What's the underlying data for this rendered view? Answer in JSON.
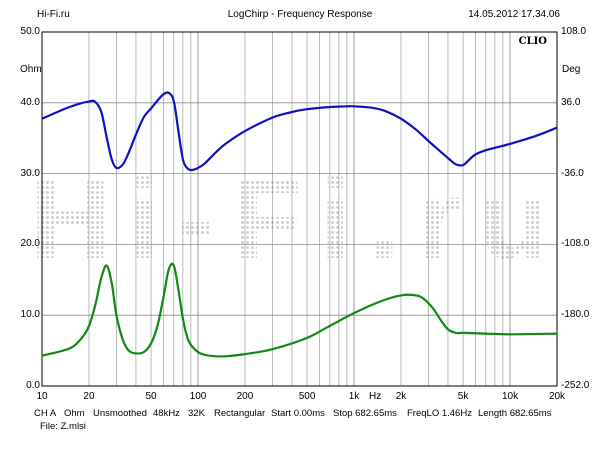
{
  "header": {
    "site": "Hi-Fi.ru",
    "title": "LogChirp - Frequency Response",
    "datetime": "14.05.2012 17.34.06"
  },
  "brand": "CLIO",
  "watermark": "Hi-Fi.ru",
  "footer": {
    "channel": "CH A",
    "unit": "Ohm",
    "smoothing": "Unsmoothed",
    "rate": "48kHz",
    "size": "32K",
    "window": "Rectangular",
    "start": "Start 0.00ms",
    "stop": "Stop 682.65ms",
    "freqlo": "FreqLO 1.46Hz",
    "length": "Length 682.65ms",
    "file": "File: Z.mlsi"
  },
  "chart_data": {
    "type": "line",
    "x_scale": "log",
    "xlim": [
      10,
      20000
    ],
    "xlabel": "Hz",
    "x_ticks": [
      {
        "value": 10,
        "label": "10"
      },
      {
        "value": 20,
        "label": "20"
      },
      {
        "value": 50,
        "label": "50"
      },
      {
        "value": 100,
        "label": "100"
      },
      {
        "value": 200,
        "label": "200"
      },
      {
        "value": 500,
        "label": "500"
      },
      {
        "value": 1000,
        "label": "1k"
      },
      {
        "value": 2000,
        "label": "2k"
      },
      {
        "value": 5000,
        "label": "5k"
      },
      {
        "value": 10000,
        "label": "10k"
      },
      {
        "value": 20000,
        "label": "20k"
      }
    ],
    "y_left": {
      "unit": "Ohm",
      "ylim": [
        0,
        50
      ],
      "ticks": [
        "0.0",
        "10.0",
        "20.0",
        "30.0",
        "40.0",
        "50.0"
      ]
    },
    "y_right": {
      "unit": "Deg",
      "ylim": [
        -252,
        108
      ],
      "ticks": [
        "-252.0",
        "-180.0",
        "-108.0",
        "-36.0",
        "36.0",
        "108.0"
      ]
    },
    "grid": true,
    "series": [
      {
        "color": "#1010c0",
        "axis": "right",
        "x": [
          10,
          15,
          20,
          22,
          24,
          26,
          28,
          30,
          33,
          36,
          40,
          45,
          50,
          55,
          60,
          65,
          70,
          75,
          80,
          85,
          90,
          95,
          100,
          110,
          130,
          150,
          200,
          300,
          400,
          500,
          700,
          900,
          1000,
          1300,
          1600,
          2000,
          2500,
          3000,
          3500,
          4000,
          4500,
          5000,
          5500,
          6000,
          7000,
          10000,
          15000,
          20000
        ],
        "y": [
          19.8,
          31.7,
          37.4,
          36.7,
          26.6,
          0.7,
          -21.6,
          -30.2,
          -26.6,
          -14.4,
          3.6,
          21.6,
          30.2,
          38.2,
          44.6,
          46.1,
          37.4,
          6.5,
          -21.6,
          -30.2,
          -32.4,
          -31.7,
          -30.2,
          -25.9,
          -14.4,
          -5.8,
          7.2,
          20.9,
          26.6,
          29.5,
          31.7,
          32.4,
          32.4,
          31.0,
          27.4,
          19.8,
          8.6,
          -2.9,
          -12.2,
          -20.2,
          -26.6,
          -27.4,
          -21.6,
          -16.6,
          -12.2,
          -5.8,
          2.9,
          10.8
        ]
      },
      {
        "color": "#138813",
        "axis": "left",
        "x": [
          10,
          15,
          18,
          20,
          22,
          24,
          26,
          28,
          30,
          33,
          36,
          40,
          45,
          50,
          55,
          60,
          65,
          70,
          75,
          80,
          85,
          90,
          100,
          110,
          130,
          150,
          200,
          300,
          500,
          700,
          1000,
          1500,
          2000,
          2500,
          2800,
          3200,
          3600,
          4000,
          4500,
          5000,
          7000,
          10000,
          20000
        ],
        "y": [
          4.3,
          5.3,
          6.8,
          8.5,
          11.5,
          15.3,
          17.0,
          14.5,
          10.0,
          6.5,
          5.0,
          4.6,
          4.8,
          6.0,
          8.5,
          12.5,
          16.5,
          17.0,
          13.5,
          9.5,
          7.0,
          5.8,
          4.8,
          4.4,
          4.2,
          4.2,
          4.5,
          5.2,
          6.8,
          8.5,
          10.3,
          12.0,
          12.8,
          12.8,
          12.3,
          11.0,
          9.3,
          8.0,
          7.5,
          7.5,
          7.4,
          7.3,
          7.4
        ]
      }
    ]
  }
}
